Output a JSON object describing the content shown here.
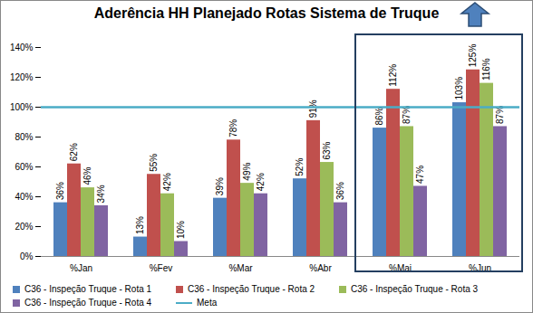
{
  "chart_data": {
    "type": "bar",
    "title": "Aderência HH Planejado Rotas Sistema de Truque",
    "categories": [
      "%Jan",
      "%Fev",
      "%Mar",
      "%Abr",
      "%Mai",
      "%Jun"
    ],
    "series": [
      {
        "name": "C36 - Inspeção Truque - Rota 1",
        "color": "#4f81bd",
        "values": [
          36,
          13,
          39,
          52,
          86,
          103
        ],
        "value_labels": [
          "36%",
          "13%",
          "39%",
          "52%",
          "86%",
          "103%"
        ]
      },
      {
        "name": "C36 - Inspeção Truque - Rota 2",
        "color": "#c0504d",
        "values": [
          62,
          55,
          78,
          91,
          112,
          125
        ],
        "value_labels": [
          "62%",
          "55%",
          "78%",
          "91%",
          "112%",
          "125%"
        ]
      },
      {
        "name": "C36 - Inspeção Truque - Rota 3",
        "color": "#9bbb59",
        "values": [
          46,
          42,
          49,
          63,
          87,
          116
        ],
        "value_labels": [
          "46%",
          "42%",
          "49%",
          "63%",
          "87%",
          "116%"
        ]
      },
      {
        "name": "C36 - Inspeção Truque - Rota 4",
        "color": "#8064a2",
        "values": [
          34,
          10,
          42,
          36,
          47,
          87
        ],
        "value_labels": [
          "34%",
          "10%",
          "42%",
          "36%",
          "47%",
          "87%"
        ]
      },
      {
        "name": "Meta",
        "type": "line",
        "color": "#4bacc6",
        "values": [
          100,
          100,
          100,
          100,
          100,
          100
        ]
      }
    ],
    "ylim": [
      0,
      140
    ],
    "yticks": [
      {
        "value": 0,
        "label": "0%"
      },
      {
        "value": 20,
        "label": "20%"
      },
      {
        "value": 40,
        "label": "40%"
      },
      {
        "value": 60,
        "label": "60%"
      },
      {
        "value": 80,
        "label": "80%"
      },
      {
        "value": 100,
        "label": "100%"
      },
      {
        "value": 120,
        "label": "120%"
      },
      {
        "value": 140,
        "label": "140%"
      }
    ],
    "grid": false,
    "data_labels": true,
    "legend": "bottom"
  }
}
